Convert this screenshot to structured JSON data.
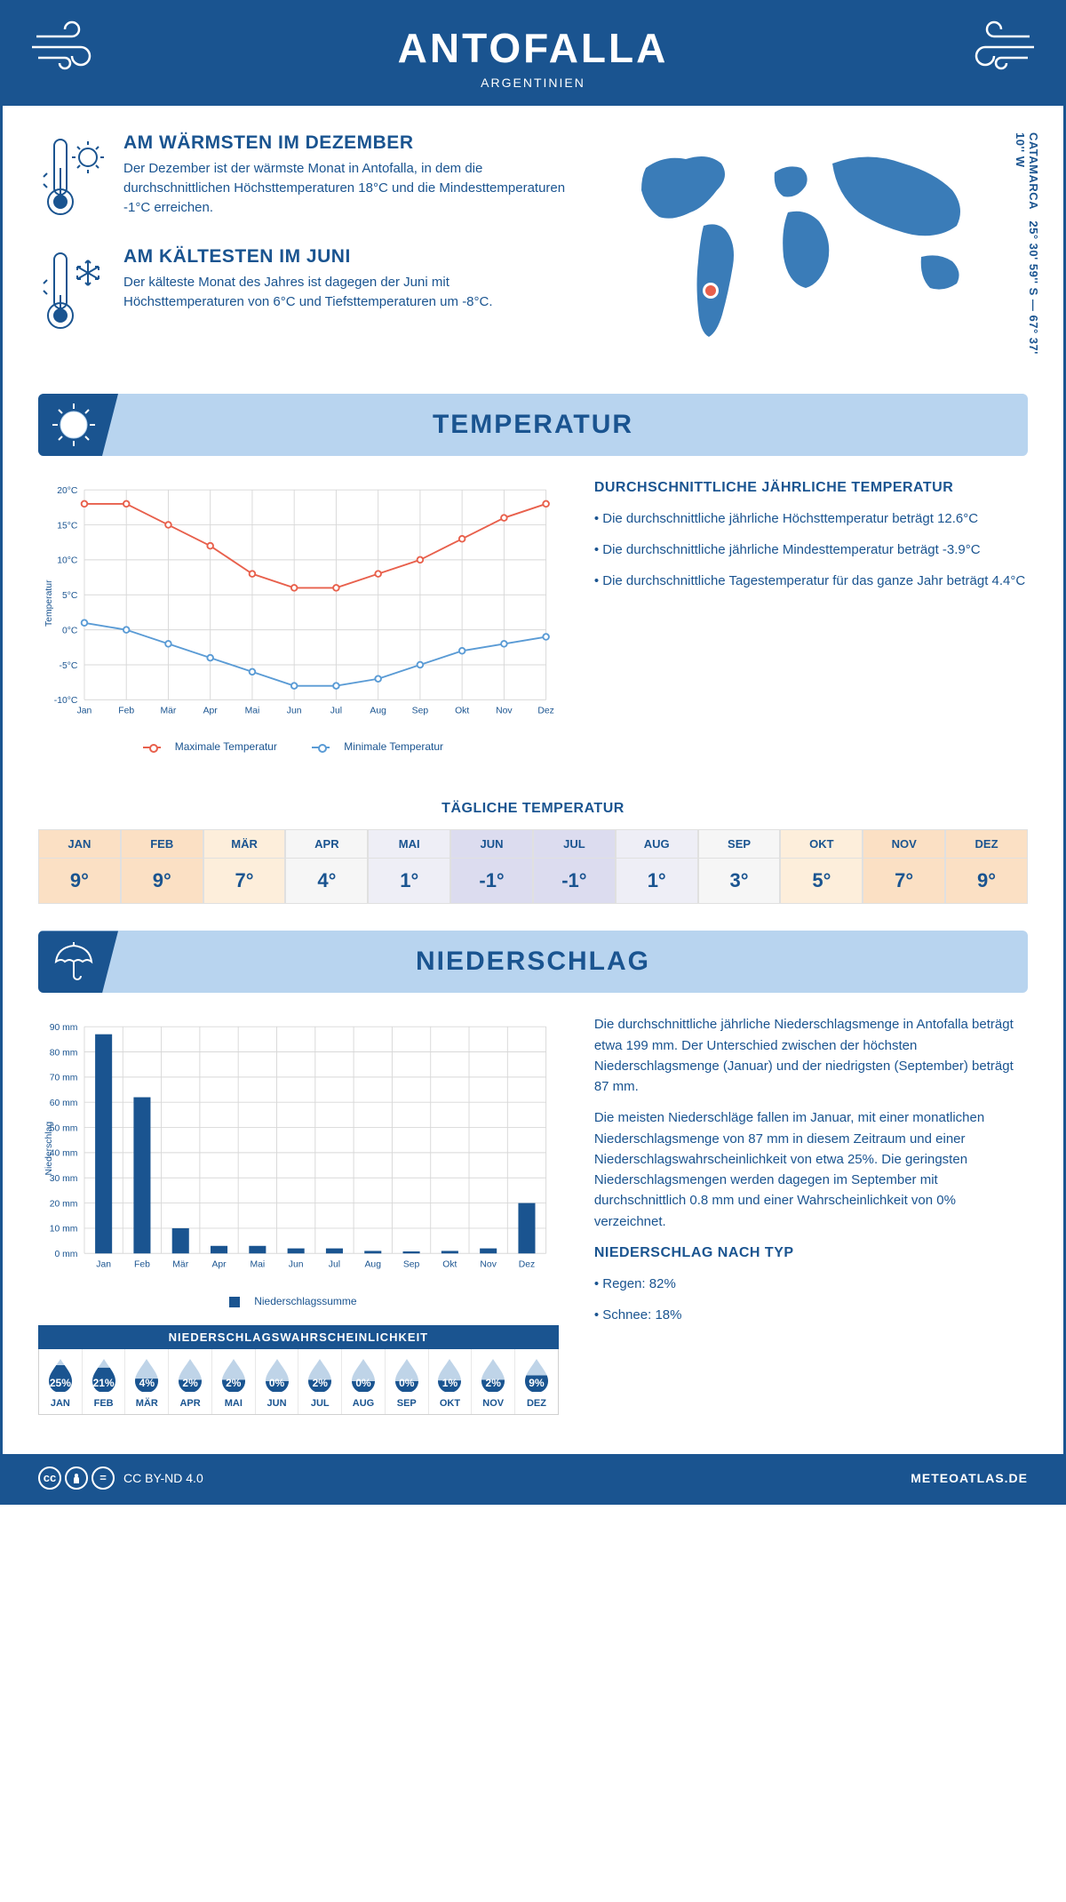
{
  "header": {
    "title": "ANTOFALLA",
    "subtitle": "ARGENTINIEN"
  },
  "coords": {
    "lat": "25° 30' 59'' S",
    "lon": "67° 37' 10'' W",
    "region": "CATAMARCA"
  },
  "warmest": {
    "title": "AM WÄRMSTEN IM DEZEMBER",
    "text": "Der Dezember ist der wärmste Monat in Antofalla, in dem die durchschnittlichen Höchsttemperaturen 18°C und die Mindesttemperaturen -1°C erreichen."
  },
  "coldest": {
    "title": "AM KÄLTESTEN IM JUNI",
    "text": "Der kälteste Monat des Jahres ist dagegen der Juni mit Höchsttemperaturen von 6°C und Tiefsttemperaturen um -8°C."
  },
  "temp_banner": "TEMPERATUR",
  "precip_banner": "NIEDERSCHLAG",
  "temp_chart": {
    "type": "line",
    "months": [
      "Jan",
      "Feb",
      "Mär",
      "Apr",
      "Mai",
      "Jun",
      "Jul",
      "Aug",
      "Sep",
      "Okt",
      "Nov",
      "Dez"
    ],
    "max": [
      18,
      18,
      15,
      12,
      8,
      6,
      6,
      8,
      10,
      13,
      16,
      18
    ],
    "min": [
      1,
      0,
      -2,
      -4,
      -6,
      -8,
      -8,
      -7,
      -5,
      -3,
      -2,
      -1
    ],
    "ymin": -10,
    "ymax": 20,
    "ystep": 5,
    "max_color": "#e8604c",
    "min_color": "#5a9bd5",
    "grid_color": "#d8d8d8",
    "ylabel": "Temperatur",
    "legend_max": "Maximale Temperatur",
    "legend_min": "Minimale Temperatur"
  },
  "temp_text": {
    "title": "DURCHSCHNITTLICHE JÄHRLICHE TEMPERATUR",
    "b1": "• Die durchschnittliche jährliche Höchsttemperatur beträgt 12.6°C",
    "b2": "• Die durchschnittliche jährliche Mindesttemperatur beträgt -3.9°C",
    "b3": "• Die durchschnittliche Tagestemperatur für das ganze Jahr beträgt 4.4°C"
  },
  "monthly_title": "TÄGLICHE TEMPERATUR",
  "monthly": {
    "months": [
      "JAN",
      "FEB",
      "MÄR",
      "APR",
      "MAI",
      "JUN",
      "JUL",
      "AUG",
      "SEP",
      "OKT",
      "NOV",
      "DEZ"
    ],
    "values": [
      "9°",
      "9°",
      "7°",
      "4°",
      "1°",
      "-1°",
      "-1°",
      "1°",
      "3°",
      "5°",
      "7°",
      "9°"
    ],
    "colors": [
      "#fbe0c4",
      "#fbe0c4",
      "#fdeedb",
      "#f6f6f6",
      "#eeeef6",
      "#dcdcef",
      "#dcdcef",
      "#eeeef6",
      "#f6f6f6",
      "#fdeedb",
      "#fbe0c4",
      "#fbe0c4"
    ]
  },
  "precip_chart": {
    "type": "bar",
    "months": [
      "Jan",
      "Feb",
      "Mär",
      "Apr",
      "Mai",
      "Jun",
      "Jul",
      "Aug",
      "Sep",
      "Okt",
      "Nov",
      "Dez"
    ],
    "values": [
      87,
      62,
      10,
      3,
      3,
      2,
      2,
      1,
      0.8,
      1,
      2,
      20
    ],
    "ymin": 0,
    "ymax": 90,
    "ystep": 10,
    "bar_color": "#1a5490",
    "grid_color": "#d8d8d8",
    "ylabel": "Niederschlag",
    "legend": "Niederschlagssumme"
  },
  "precip_text": {
    "p1": "Die durchschnittliche jährliche Niederschlagsmenge in Antofalla beträgt etwa 199 mm. Der Unterschied zwischen der höchsten Niederschlagsmenge (Januar) und der niedrigsten (September) beträgt 87 mm.",
    "p2": "Die meisten Niederschläge fallen im Januar, mit einer monatlichen Niederschlagsmenge von 87 mm in diesem Zeitraum und einer Niederschlagswahrscheinlichkeit von etwa 25%. Die geringsten Niederschlagsmengen werden dagegen im September mit durchschnittlich 0.8 mm und einer Wahrscheinlichkeit von 0% verzeichnet.",
    "type_title": "NIEDERSCHLAG NACH TYP",
    "type1": "• Regen: 82%",
    "type2": "• Schnee: 18%"
  },
  "prob": {
    "title": "NIEDERSCHLAGSWAHRSCHEINLICHKEIT",
    "months": [
      "JAN",
      "FEB",
      "MÄR",
      "APR",
      "MAI",
      "JUN",
      "JUL",
      "AUG",
      "SEP",
      "OKT",
      "NOV",
      "DEZ"
    ],
    "values": [
      25,
      21,
      4,
      2,
      2,
      0,
      2,
      0,
      0,
      1,
      2,
      9
    ],
    "fill_color": "#1a5490",
    "empty_color": "#bfd4e8"
  },
  "footer": {
    "license": "CC BY-ND 4.0",
    "site": "METEOATLAS.DE"
  }
}
